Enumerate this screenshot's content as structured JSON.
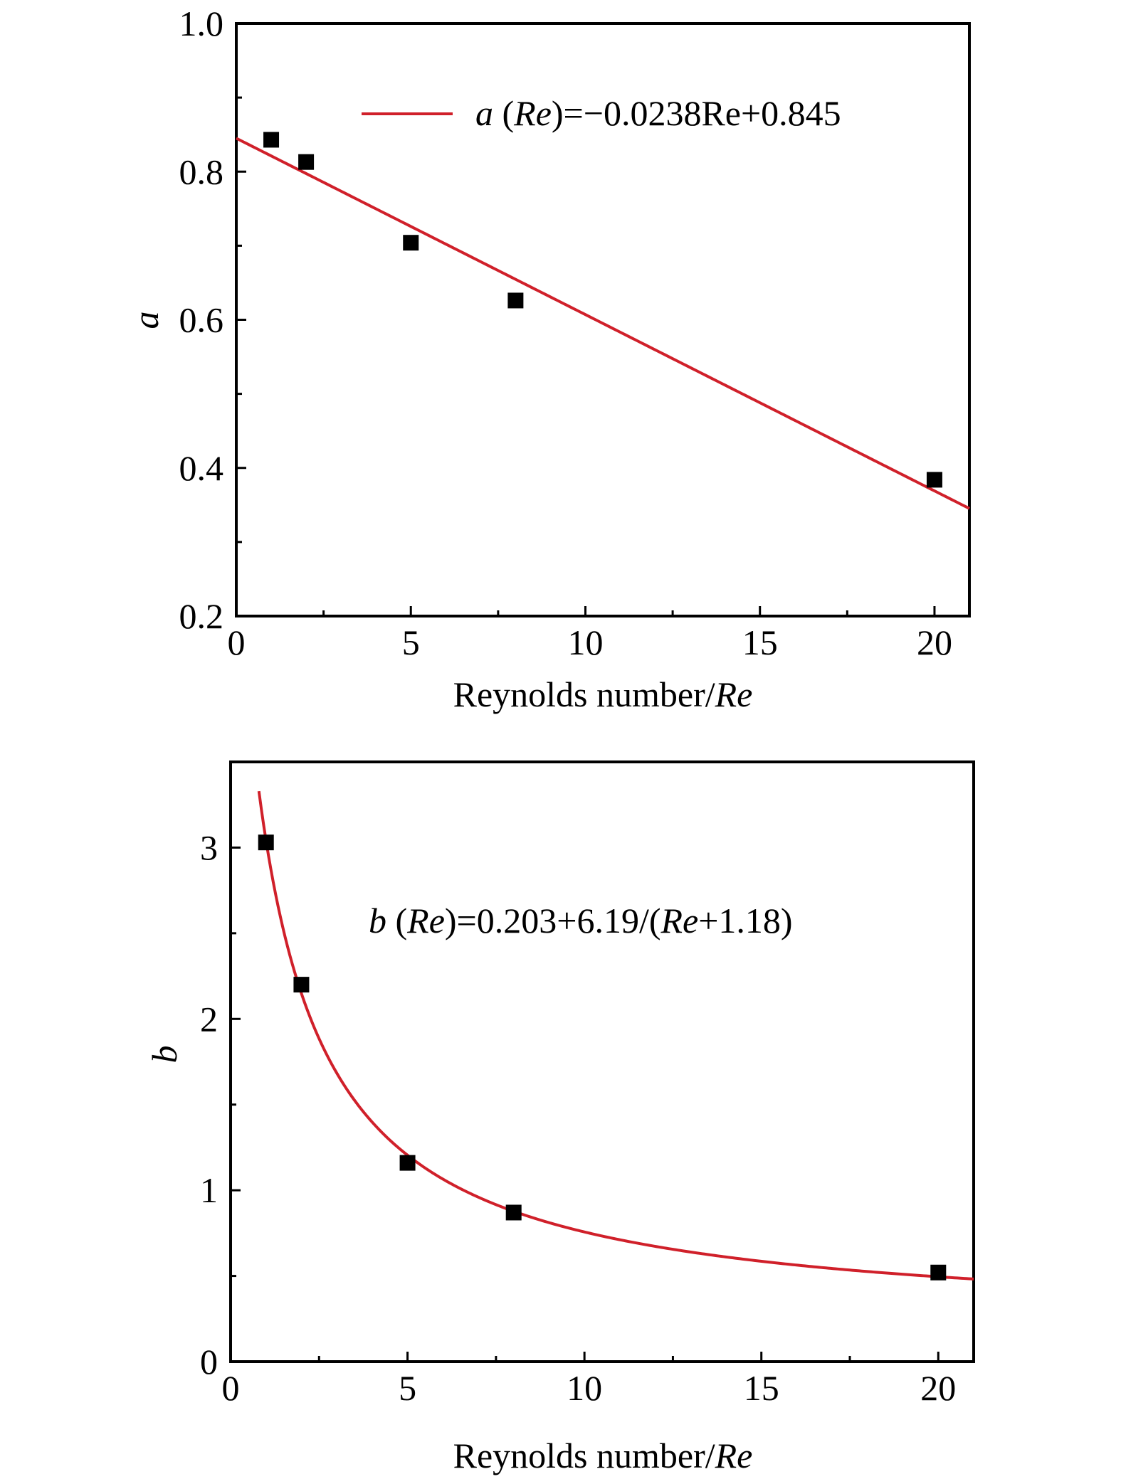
{
  "chart_data": [
    {
      "type": "scatter",
      "xlabel": "Reynolds number/",
      "xlabel_italic": "Re",
      "ylabel": "a",
      "xlim": [
        0,
        21
      ],
      "ylim": [
        0.2,
        1.0
      ],
      "x_ticks": [
        0,
        5,
        10,
        15,
        20
      ],
      "x_tick_labels": [
        "0",
        "5",
        "10",
        "15",
        "20"
      ],
      "y_ticks": [
        0.2,
        0.4,
        0.6,
        0.8,
        1.0
      ],
      "y_tick_labels": [
        "0.2",
        "0.4",
        "0.6",
        "0.8",
        "1.0"
      ],
      "grid": false,
      "legend_placement": "top-right",
      "series": [
        {
          "kind": "points",
          "x": [
            1,
            2,
            5,
            8,
            20
          ],
          "y": [
            0.843,
            0.813,
            0.704,
            0.626,
            0.384
          ]
        },
        {
          "kind": "fit",
          "model": "linear",
          "slope": -0.0238,
          "intercept": 0.845
        }
      ],
      "legend": {
        "prefix": "a",
        "open": " (",
        "var": "Re",
        "rest": ")=−0.0238Re+0.845"
      },
      "colors": {
        "fit": "#d0202a",
        "marker": "#000000"
      }
    },
    {
      "type": "scatter",
      "xlabel": "Reynolds number/",
      "xlabel_italic": "Re",
      "ylabel": "b",
      "xlim": [
        0,
        21
      ],
      "ylim": [
        0,
        3.5
      ],
      "x_ticks": [
        0,
        5,
        10,
        15,
        20
      ],
      "x_tick_labels": [
        "0",
        "5",
        "10",
        "15",
        "20"
      ],
      "y_ticks": [
        0,
        1,
        2,
        3
      ],
      "y_tick_labels": [
        "0",
        "1",
        "2",
        "3"
      ],
      "grid": false,
      "legend_placement": "top-center",
      "series": [
        {
          "kind": "points",
          "x": [
            1,
            2,
            5,
            8,
            20
          ],
          "y": [
            3.03,
            2.2,
            1.16,
            0.87,
            0.52
          ]
        },
        {
          "kind": "fit",
          "model": "hyperbolic",
          "c0": 0.203,
          "c1": 6.19,
          "c2": 1.18
        }
      ],
      "legend": {
        "prefix": "b",
        "open": " (",
        "var": "Re",
        "mid": ")=0.203+6.19/(",
        "var2": "Re",
        "rest": "+1.18)"
      },
      "colors": {
        "fit": "#d0202a",
        "marker": "#000000"
      }
    }
  ]
}
